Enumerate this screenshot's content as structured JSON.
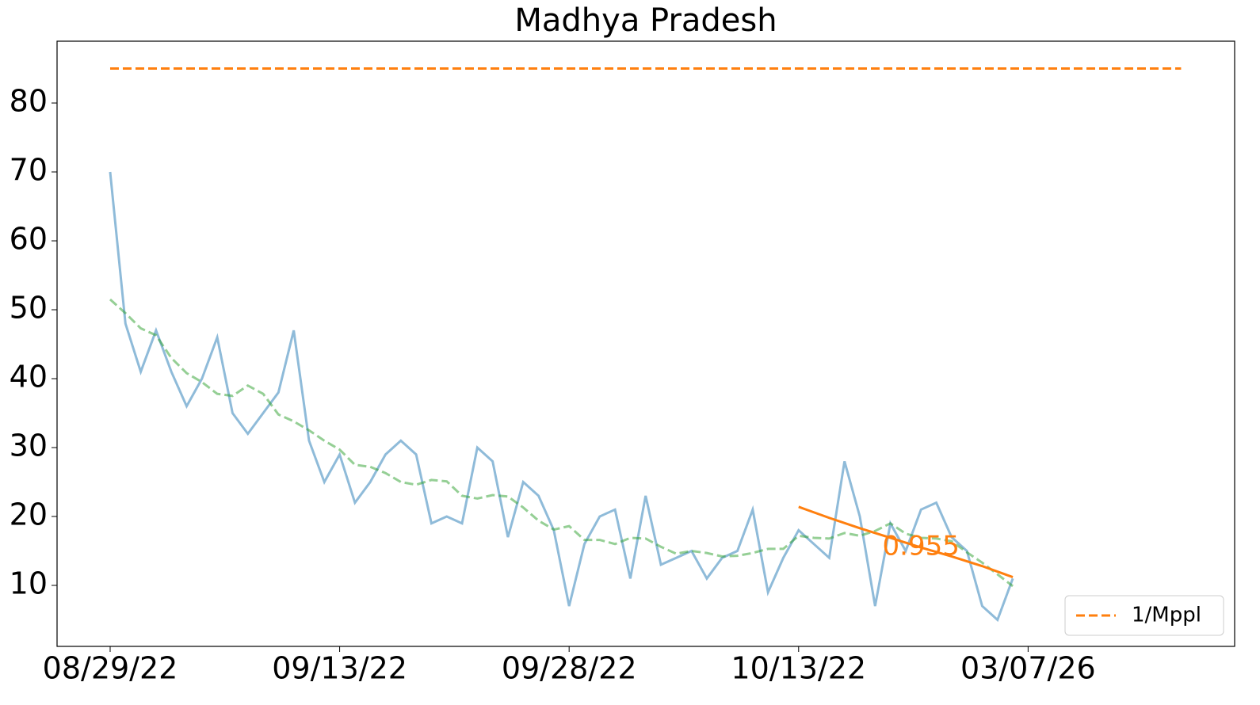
{
  "chart_data": {
    "type": "line",
    "title": "Madhya Pradesh",
    "xlim": [
      -3.47,
      73.5
    ],
    "ylim": [
      1.15,
      88.97
    ],
    "xticks": [
      {
        "value": 0,
        "label": "08/29/22"
      },
      {
        "value": 15,
        "label": "09/13/22"
      },
      {
        "value": 30,
        "label": "09/28/22"
      },
      {
        "value": 45,
        "label": "10/13/22"
      },
      {
        "value": 60,
        "label": "03/07/26"
      }
    ],
    "yticks": [
      10,
      20,
      30,
      40,
      50,
      60,
      70,
      80
    ],
    "legend": "lower right",
    "series": [
      {
        "color": "#1f77b4",
        "opacity": 0.5,
        "dash": false,
        "x": [
          0,
          1,
          2,
          3,
          4,
          5,
          6,
          7,
          8,
          9,
          10,
          11,
          12,
          13,
          14,
          15,
          16,
          17,
          18,
          19,
          20,
          21,
          22,
          23,
          24,
          25,
          26,
          27,
          28,
          29,
          30,
          31,
          32,
          33,
          34,
          35,
          36,
          37,
          38,
          39,
          40,
          41,
          42,
          43,
          44,
          45,
          46,
          47,
          48,
          49,
          50,
          51,
          52,
          53,
          54,
          55,
          56,
          57,
          58,
          59
        ],
        "values": [
          70,
          48,
          41,
          47,
          41,
          36,
          40,
          46,
          35,
          32,
          35,
          38,
          47,
          31,
          25,
          29,
          22,
          25,
          29,
          31,
          29,
          19,
          20,
          19,
          30,
          28,
          17,
          25,
          23,
          18,
          7,
          16,
          20,
          21,
          11,
          23,
          13,
          14,
          15,
          11,
          14,
          15,
          21,
          9,
          14,
          18,
          16,
          14,
          28,
          20,
          7,
          19,
          15,
          21,
          22,
          17,
          15,
          7,
          5,
          11
        ]
      },
      {
        "color": "#2ca02c",
        "opacity": 0.5,
        "dash": true,
        "x": [
          0,
          1,
          2,
          3,
          4,
          5,
          6,
          7,
          8,
          9,
          10,
          11,
          12,
          13,
          14,
          15,
          16,
          17,
          18,
          19,
          20,
          21,
          22,
          23,
          24,
          25,
          26,
          27,
          28,
          29,
          30,
          31,
          32,
          33,
          34,
          35,
          36,
          37,
          38,
          39,
          40,
          41,
          42,
          43,
          44,
          45,
          46,
          47,
          48,
          49,
          50,
          51,
          52,
          53,
          54,
          55,
          56,
          57,
          58,
          59
        ],
        "values": [
          51.5,
          49.5,
          47.3,
          46.3,
          43,
          40.8,
          39.5,
          37.8,
          37.5,
          39,
          37.8,
          34.8,
          33.8,
          32.5,
          31,
          29.7,
          27.5,
          27.2,
          26.3,
          25,
          24.6,
          25.3,
          25.1,
          23,
          22.6,
          23.1,
          22.9,
          21.3,
          19.4,
          18.1,
          18.6,
          16.6,
          16.6,
          16,
          16.9,
          16.8,
          15.6,
          14.6,
          15,
          14.7,
          14.2,
          14.3,
          14.7,
          15.3,
          15.3,
          17.2,
          16.9,
          16.8,
          17.6,
          17.2,
          17.9,
          19,
          17.5,
          16.9,
          16.8,
          16.4,
          14.8,
          13.3,
          11.6,
          9.9
        ]
      },
      {
        "color": "#ff7f0e",
        "opacity": 1,
        "dash": false,
        "x": [
          45,
          47,
          49,
          51,
          53,
          55,
          57,
          59
        ],
        "values": [
          21.4,
          19.8,
          18.3,
          16.9,
          15.5,
          14.2,
          12.8,
          11.2
        ]
      },
      {
        "name": "1/Mppl",
        "color": "#ff7f0e",
        "opacity": 1,
        "dash": true,
        "x": [
          0,
          70
        ],
        "values": [
          85,
          85
        ]
      }
    ],
    "annotations": [
      {
        "text": "0.955",
        "color": "#ff7f0e"
      }
    ]
  }
}
